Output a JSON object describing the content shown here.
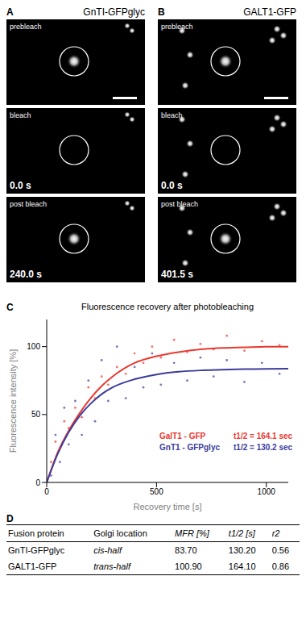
{
  "images": [
    {
      "panel": "A",
      "title": "GnTI-GFPglyc",
      "frames": [
        {
          "label": "prebleach"
        },
        {
          "label": "bleach",
          "time": "0.0 s"
        },
        {
          "label": "post bleach",
          "time": "240.0 s"
        }
      ]
    },
    {
      "panel": "B",
      "title": "GALT1-GFP",
      "frames": [
        {
          "label": "prebleach"
        },
        {
          "label": "bleach",
          "time": "0.0 s"
        },
        {
          "label": "post bleach",
          "time": "401.5 s"
        }
      ]
    }
  ],
  "chart_data": {
    "panel": "C",
    "type": "scatter",
    "title": "Fluorescence recovery after photobleaching",
    "x_label": "Recovery time [s]",
    "y_label": "Fluorescence intensity [%]",
    "xlim": [
      0,
      1100
    ],
    "xticks": [
      0,
      500,
      1000
    ],
    "ylim": [
      0,
      120
    ],
    "yticks": [
      0,
      50,
      100
    ],
    "legend": "lower right",
    "series": [
      {
        "name": "GalT1 - GFP",
        "annotation": "t1/2 = 164.1 sec",
        "color": "#e8392f",
        "points": {
          "x": [
            20,
            40,
            60,
            80,
            100,
            130,
            160,
            190,
            220,
            250,
            280,
            320,
            360,
            400,
            440,
            480,
            520,
            580,
            640,
            700,
            760,
            820,
            900,
            980,
            1060
          ],
          "y": [
            15,
            30,
            25,
            45,
            40,
            55,
            48,
            70,
            62,
            78,
            72,
            85,
            80,
            95,
            88,
            100,
            92,
            105,
            96,
            102,
            98,
            108,
            97,
            104,
            101
          ]
        },
        "curve": {
          "x": [
            0,
            50,
            100,
            150,
            200,
            250,
            300,
            400,
            500,
            600,
            700,
            800,
            900,
            1000,
            1100
          ],
          "values": [
            0,
            22,
            38,
            51,
            62,
            71,
            78,
            88,
            93,
            96,
            98,
            99,
            99.5,
            100,
            100
          ]
        }
      },
      {
        "name": "GnT1 - GFPglyc",
        "annotation": "t1/2 = 130.2 sec",
        "color": "#3c3c9c",
        "points": {
          "x": [
            20,
            40,
            60,
            80,
            100,
            130,
            160,
            190,
            220,
            250,
            280,
            320,
            360,
            400,
            440,
            480,
            520,
            580,
            640,
            700,
            760,
            820,
            900,
            980,
            1060
          ],
          "y": [
            5,
            35,
            15,
            55,
            28,
            60,
            35,
            75,
            45,
            90,
            60,
            100,
            62,
            85,
            70,
            95,
            72,
            88,
            75,
            92,
            78,
            90,
            74,
            88,
            80
          ]
        },
        "curve": {
          "x": [
            0,
            50,
            100,
            150,
            200,
            250,
            300,
            400,
            500,
            600,
            700,
            800,
            900,
            1000,
            1100
          ],
          "values": [
            0,
            21,
            37,
            49,
            58,
            65,
            70,
            76,
            79.5,
            81.5,
            82.5,
            83,
            83.4,
            83.6,
            83.7
          ]
        }
      }
    ]
  },
  "table": {
    "panel": "D",
    "header": [
      "Fusion protein",
      "Golgi location",
      "MFR [%]",
      "t1/2 [s]",
      "r2"
    ],
    "rows": [
      [
        "GnTI-GFPglyc",
        "cis-half",
        "83.70",
        "130.20",
        "0.56"
      ],
      [
        "GALT1-GFP",
        "trans-half",
        "100.90",
        "164.10",
        "0.86"
      ]
    ]
  }
}
